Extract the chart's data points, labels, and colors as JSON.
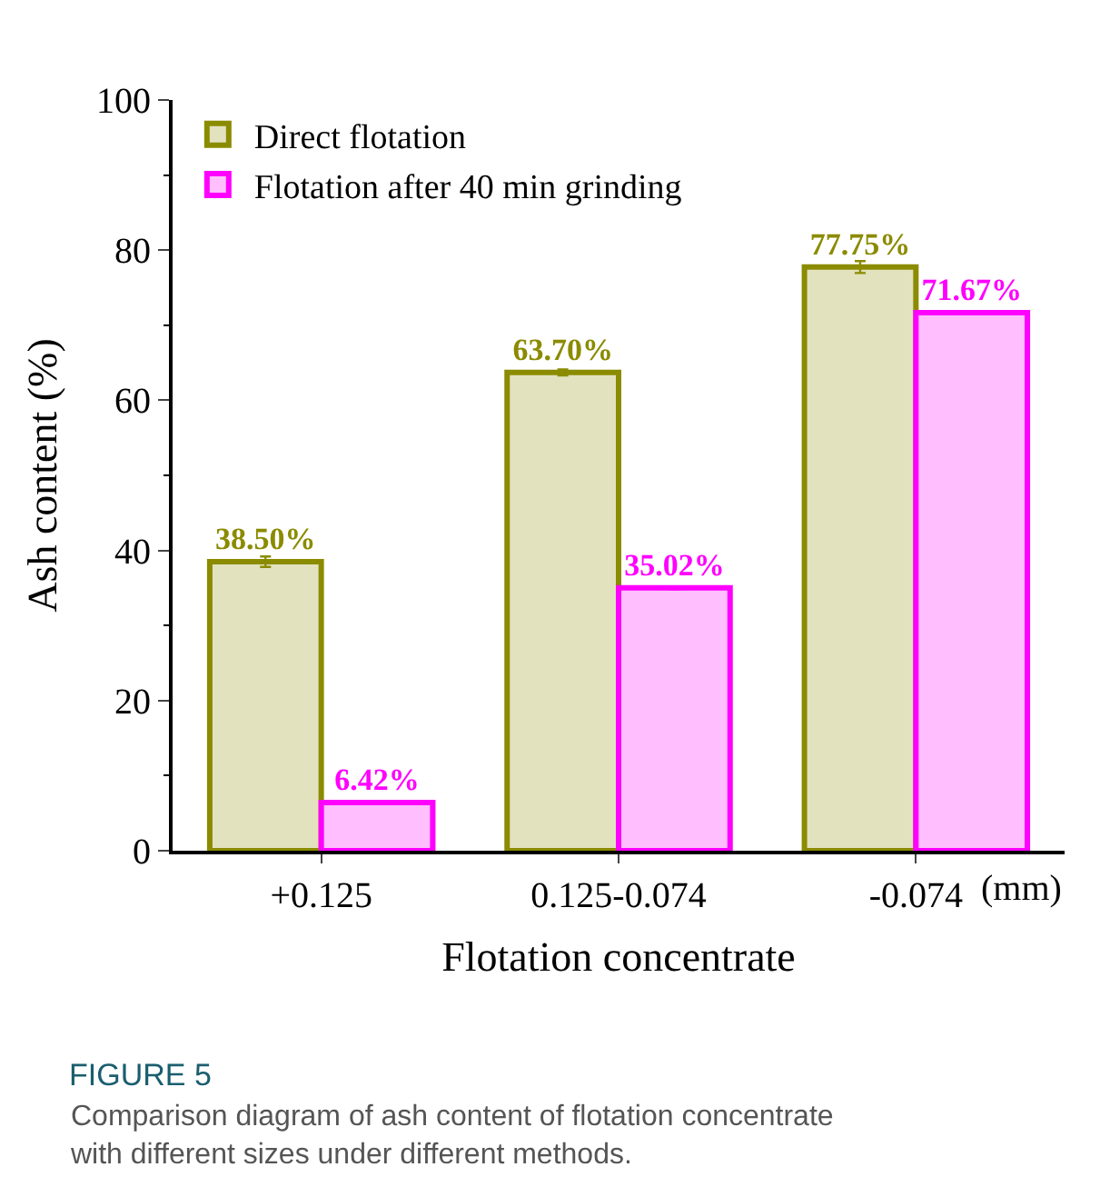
{
  "chart_data": {
    "type": "bar",
    "xlabel": "Flotation concentrate",
    "ylabel": "Ash content (%)",
    "categories": [
      "+0.125",
      "0.125-0.074",
      "-0.074"
    ],
    "series": [
      {
        "name": "Direct flotation",
        "color": "#8b8b00",
        "values": [
          38.5,
          63.7,
          77.75
        ],
        "errors": [
          0.7,
          0.4,
          0.8
        ],
        "value_labels": [
          "38.50%",
          "63.70%",
          "77.75%"
        ]
      },
      {
        "name": "Flotation after 40 min grinding",
        "color": "#ff00ff",
        "values": [
          6.42,
          35.02,
          71.67
        ],
        "errors": [
          0.2,
          0.2,
          0.2
        ],
        "value_labels": [
          "6.42%",
          "35.02%",
          "71.67%"
        ]
      }
    ],
    "ylim": [
      0,
      100
    ],
    "yticks": [
      0,
      20,
      40,
      60,
      80,
      100
    ],
    "legend": "top left",
    "annotations": [
      "(mm)",
      "FIGURE 5",
      "Comparison diagram of ash content of flotation concentrate with different sizes under different methods."
    ]
  }
}
